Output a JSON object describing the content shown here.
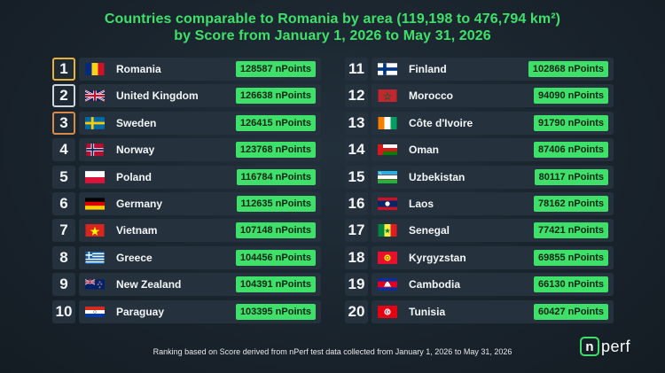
{
  "title": {
    "line1": "Countries comparable to Romania by area (119,198 to 476,794 km²)",
    "line2": "by Score from January 1, 2026 to May 31, 2026"
  },
  "colors": {
    "accent": "#3ee06a",
    "gold": "#e6b23a",
    "silver": "#cfd5da",
    "bronze": "#d9894a"
  },
  "left": [
    {
      "rank": "1",
      "country": "Romania",
      "score": "128587 nPoints",
      "flag": "romania-flag-icon"
    },
    {
      "rank": "2",
      "country": "United Kingdom",
      "score": "126638 nPoints",
      "flag": "united-kingdom-flag-icon"
    },
    {
      "rank": "3",
      "country": "Sweden",
      "score": "126415 nPoints",
      "flag": "sweden-flag-icon"
    },
    {
      "rank": "4",
      "country": "Norway",
      "score": "123768 nPoints",
      "flag": "norway-flag-icon"
    },
    {
      "rank": "5",
      "country": "Poland",
      "score": "116784 nPoints",
      "flag": "poland-flag-icon"
    },
    {
      "rank": "6",
      "country": "Germany",
      "score": "112635 nPoints",
      "flag": "germany-flag-icon"
    },
    {
      "rank": "7",
      "country": "Vietnam",
      "score": "107148 nPoints",
      "flag": "vietnam-flag-icon"
    },
    {
      "rank": "8",
      "country": "Greece",
      "score": "104456 nPoints",
      "flag": "greece-flag-icon"
    },
    {
      "rank": "9",
      "country": "New Zealand",
      "score": "104391 nPoints",
      "flag": "new-zealand-flag-icon"
    },
    {
      "rank": "10",
      "country": "Paraguay",
      "score": "103395 nPoints",
      "flag": "paraguay-flag-icon"
    }
  ],
  "right": [
    {
      "rank": "11",
      "country": "Finland",
      "score": "102868 nPoints",
      "flag": "finland-flag-icon"
    },
    {
      "rank": "12",
      "country": "Morocco",
      "score": "94090 nPoints",
      "flag": "morocco-flag-icon"
    },
    {
      "rank": "13",
      "country": "Côte d'Ivoire",
      "score": "91790 nPoints",
      "flag": "cote-divoire-flag-icon"
    },
    {
      "rank": "14",
      "country": "Oman",
      "score": "87406 nPoints",
      "flag": "oman-flag-icon"
    },
    {
      "rank": "15",
      "country": "Uzbekistan",
      "score": "80117 nPoints",
      "flag": "uzbekistan-flag-icon"
    },
    {
      "rank": "16",
      "country": "Laos",
      "score": "78162 nPoints",
      "flag": "laos-flag-icon"
    },
    {
      "rank": "17",
      "country": "Senegal",
      "score": "77421 nPoints",
      "flag": "senegal-flag-icon"
    },
    {
      "rank": "18",
      "country": "Kyrgyzstan",
      "score": "69855 nPoints",
      "flag": "kyrgyzstan-flag-icon"
    },
    {
      "rank": "19",
      "country": "Cambodia",
      "score": "66130 nPoints",
      "flag": "cambodia-flag-icon"
    },
    {
      "rank": "20",
      "country": "Tunisia",
      "score": "60427 nPoints",
      "flag": "tunisia-flag-icon"
    }
  ],
  "footer": "Ranking based on Score derived from nPerf test data collected from January 1, 2026 to May 31, 2026",
  "logo": {
    "n": "n",
    "perf": "perf"
  }
}
